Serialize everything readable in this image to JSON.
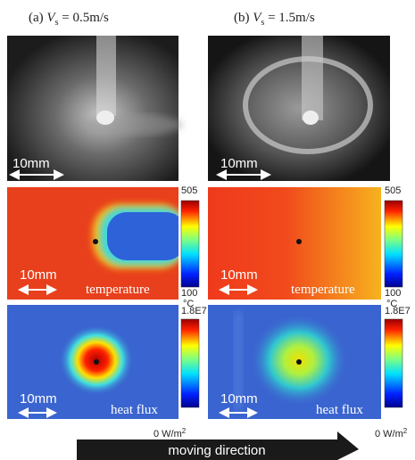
{
  "columns": [
    {
      "label": "(a)",
      "variable": "V",
      "subscript": "s",
      "value": "= 0.5m/s"
    },
    {
      "label": "(b)",
      "variable": "V",
      "subscript": "s",
      "value": "= 1.5m/s"
    }
  ],
  "photos": [
    {
      "scale": "10mm"
    },
    {
      "scale": "10mm"
    }
  ],
  "temperature_maps": [
    {
      "scale": "10mm",
      "name": "temperature",
      "colorbar": {
        "max": "505",
        "min": "100",
        "unit": "°C"
      }
    },
    {
      "scale": "10mm",
      "name": "temperature",
      "colorbar": {
        "max": "505",
        "min": "100",
        "unit": "°C"
      }
    }
  ],
  "heat_flux_maps": [
    {
      "scale": "10mm",
      "name": "heat flux",
      "colorbar": {
        "max": "1.8E7",
        "min": "0 W/m",
        "min_superscript": "2"
      }
    },
    {
      "scale": "10mm",
      "name": "heat flux",
      "colorbar": {
        "max": "1.8E7",
        "min": "0 W/m",
        "min_superscript": "2"
      }
    }
  ],
  "arrow": "moving direction"
}
